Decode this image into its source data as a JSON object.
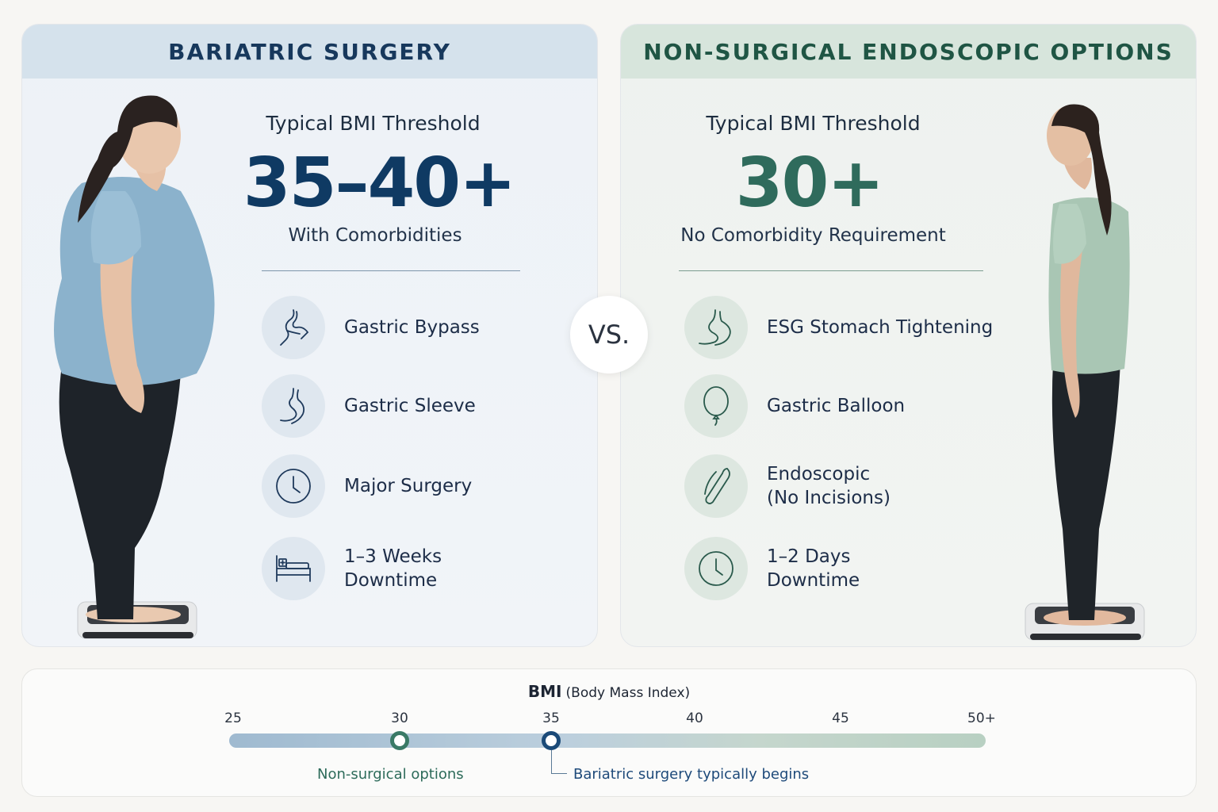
{
  "left_panel": {
    "title": "BARIATRIC SURGERY",
    "threshold_label": "Typical BMI Threshold",
    "threshold_value": "35–40+",
    "threshold_sub": "With Comorbidities",
    "accent_color": "#0f3a63",
    "items": [
      {
        "label": "Gastric Bypass",
        "icon": "stomach-bypass-icon"
      },
      {
        "label": "Gastric Sleeve",
        "icon": "stomach-sleeve-icon"
      },
      {
        "label": "Major Surgery",
        "icon": "clock-icon"
      },
      {
        "label": "1–3 Weeks\nDowntime",
        "icon": "hospital-bed-icon"
      }
    ]
  },
  "vs_label": "VS.",
  "right_panel": {
    "title": "NON-SURGICAL ENDOSCOPIC OPTIONS",
    "threshold_label": "Typical BMI Threshold",
    "threshold_value": "30+",
    "threshold_sub": "No Comorbidity Requirement",
    "accent_color": "#2f6b5c",
    "items": [
      {
        "label": "ESG Stomach Tightening",
        "icon": "stomach-icon"
      },
      {
        "label": "Gastric Balloon",
        "icon": "balloon-icon"
      },
      {
        "label": "Endoscopic\n(No Incisions)",
        "icon": "endoscope-icon"
      },
      {
        "label": "1–2 Days\nDowntime",
        "icon": "clock-icon"
      }
    ]
  },
  "bmi_scale": {
    "title": "BMI",
    "subtitle": "(Body Mass Index)",
    "ticks": [
      "25",
      "30",
      "35",
      "40",
      "45",
      "50+"
    ],
    "markers": [
      {
        "value": 30,
        "label": "Non-surgical options",
        "color": "#3a7a66"
      },
      {
        "value": 35,
        "label": "Bariatric surgery typically begins",
        "color": "#1b4a78"
      }
    ]
  }
}
